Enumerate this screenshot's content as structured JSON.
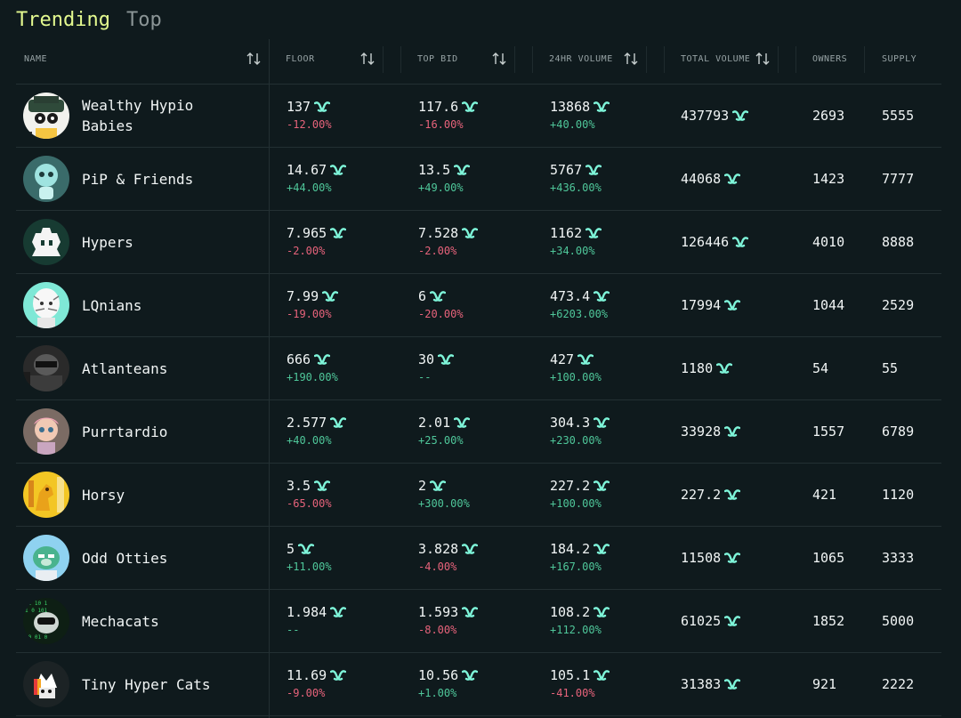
{
  "tabs": {
    "trending": "Trending",
    "top": "Top"
  },
  "headers": {
    "name": "NAME",
    "floor": "FLOOR",
    "top_bid": "TOP BID",
    "volume_24h": "24HR VOLUME",
    "total_volume": "TOTAL VOLUME",
    "owners": "OWNERS",
    "supply": "SUPPLY"
  },
  "colors": {
    "accent": "#e3f98f",
    "positive": "#4fc79a",
    "negative": "#e7637b",
    "currency": "#7ef5d9",
    "background": "#0f1a1d"
  },
  "currency_icon": "hype-token-icon",
  "rows": [
    {
      "name": "Wealthy Hypio Babies",
      "floor": "137",
      "floor_chg": "-12.00%",
      "bid": "117.6",
      "bid_chg": "-16.00%",
      "vol": "13868",
      "vol_chg": "+40.00%",
      "total": "437793",
      "owners": "2693",
      "supply": "5555"
    },
    {
      "name": "PiP & Friends",
      "floor": "14.67",
      "floor_chg": "+44.00%",
      "bid": "13.5",
      "bid_chg": "+49.00%",
      "vol": "5767",
      "vol_chg": "+436.00%",
      "total": "44068",
      "owners": "1423",
      "supply": "7777"
    },
    {
      "name": "Hypers",
      "floor": "7.965",
      "floor_chg": "-2.00%",
      "bid": "7.528",
      "bid_chg": "-2.00%",
      "vol": "1162",
      "vol_chg": "+34.00%",
      "total": "126446",
      "owners": "4010",
      "supply": "8888"
    },
    {
      "name": "LQnians",
      "floor": "7.99",
      "floor_chg": "-19.00%",
      "bid": "6",
      "bid_chg": "-20.00%",
      "vol": "473.4",
      "vol_chg": "+6203.00%",
      "total": "17994",
      "owners": "1044",
      "supply": "2529"
    },
    {
      "name": "Atlanteans",
      "floor": "666",
      "floor_chg": "+190.00%",
      "bid": "30",
      "bid_chg": "--",
      "vol": "427",
      "vol_chg": "+100.00%",
      "total": "1180",
      "owners": "54",
      "supply": "55"
    },
    {
      "name": "Purrtardio",
      "floor": "2.577",
      "floor_chg": "+40.00%",
      "bid": "2.01",
      "bid_chg": "+25.00%",
      "vol": "304.3",
      "vol_chg": "+230.00%",
      "total": "33928",
      "owners": "1557",
      "supply": "6789"
    },
    {
      "name": "Horsy",
      "floor": "3.5",
      "floor_chg": "-65.00%",
      "bid": "2",
      "bid_chg": "+300.00%",
      "vol": "227.2",
      "vol_chg": "+100.00%",
      "total": "227.2",
      "owners": "421",
      "supply": "1120"
    },
    {
      "name": "Odd Otties",
      "floor": "5",
      "floor_chg": "+11.00%",
      "bid": "3.828",
      "bid_chg": "-4.00%",
      "vol": "184.2",
      "vol_chg": "+167.00%",
      "total": "11508",
      "owners": "1065",
      "supply": "3333"
    },
    {
      "name": "Mechacats",
      "floor": "1.984",
      "floor_chg": "--",
      "bid": "1.593",
      "bid_chg": "-8.00%",
      "vol": "108.2",
      "vol_chg": "+112.00%",
      "total": "61025",
      "owners": "1852",
      "supply": "5000"
    },
    {
      "name": "Tiny Hyper Cats",
      "floor": "11.69",
      "floor_chg": "-9.00%",
      "bid": "10.56",
      "bid_chg": "+1.00%",
      "vol": "105.1",
      "vol_chg": "-41.00%",
      "total": "31383",
      "owners": "921",
      "supply": "2222"
    }
  ]
}
